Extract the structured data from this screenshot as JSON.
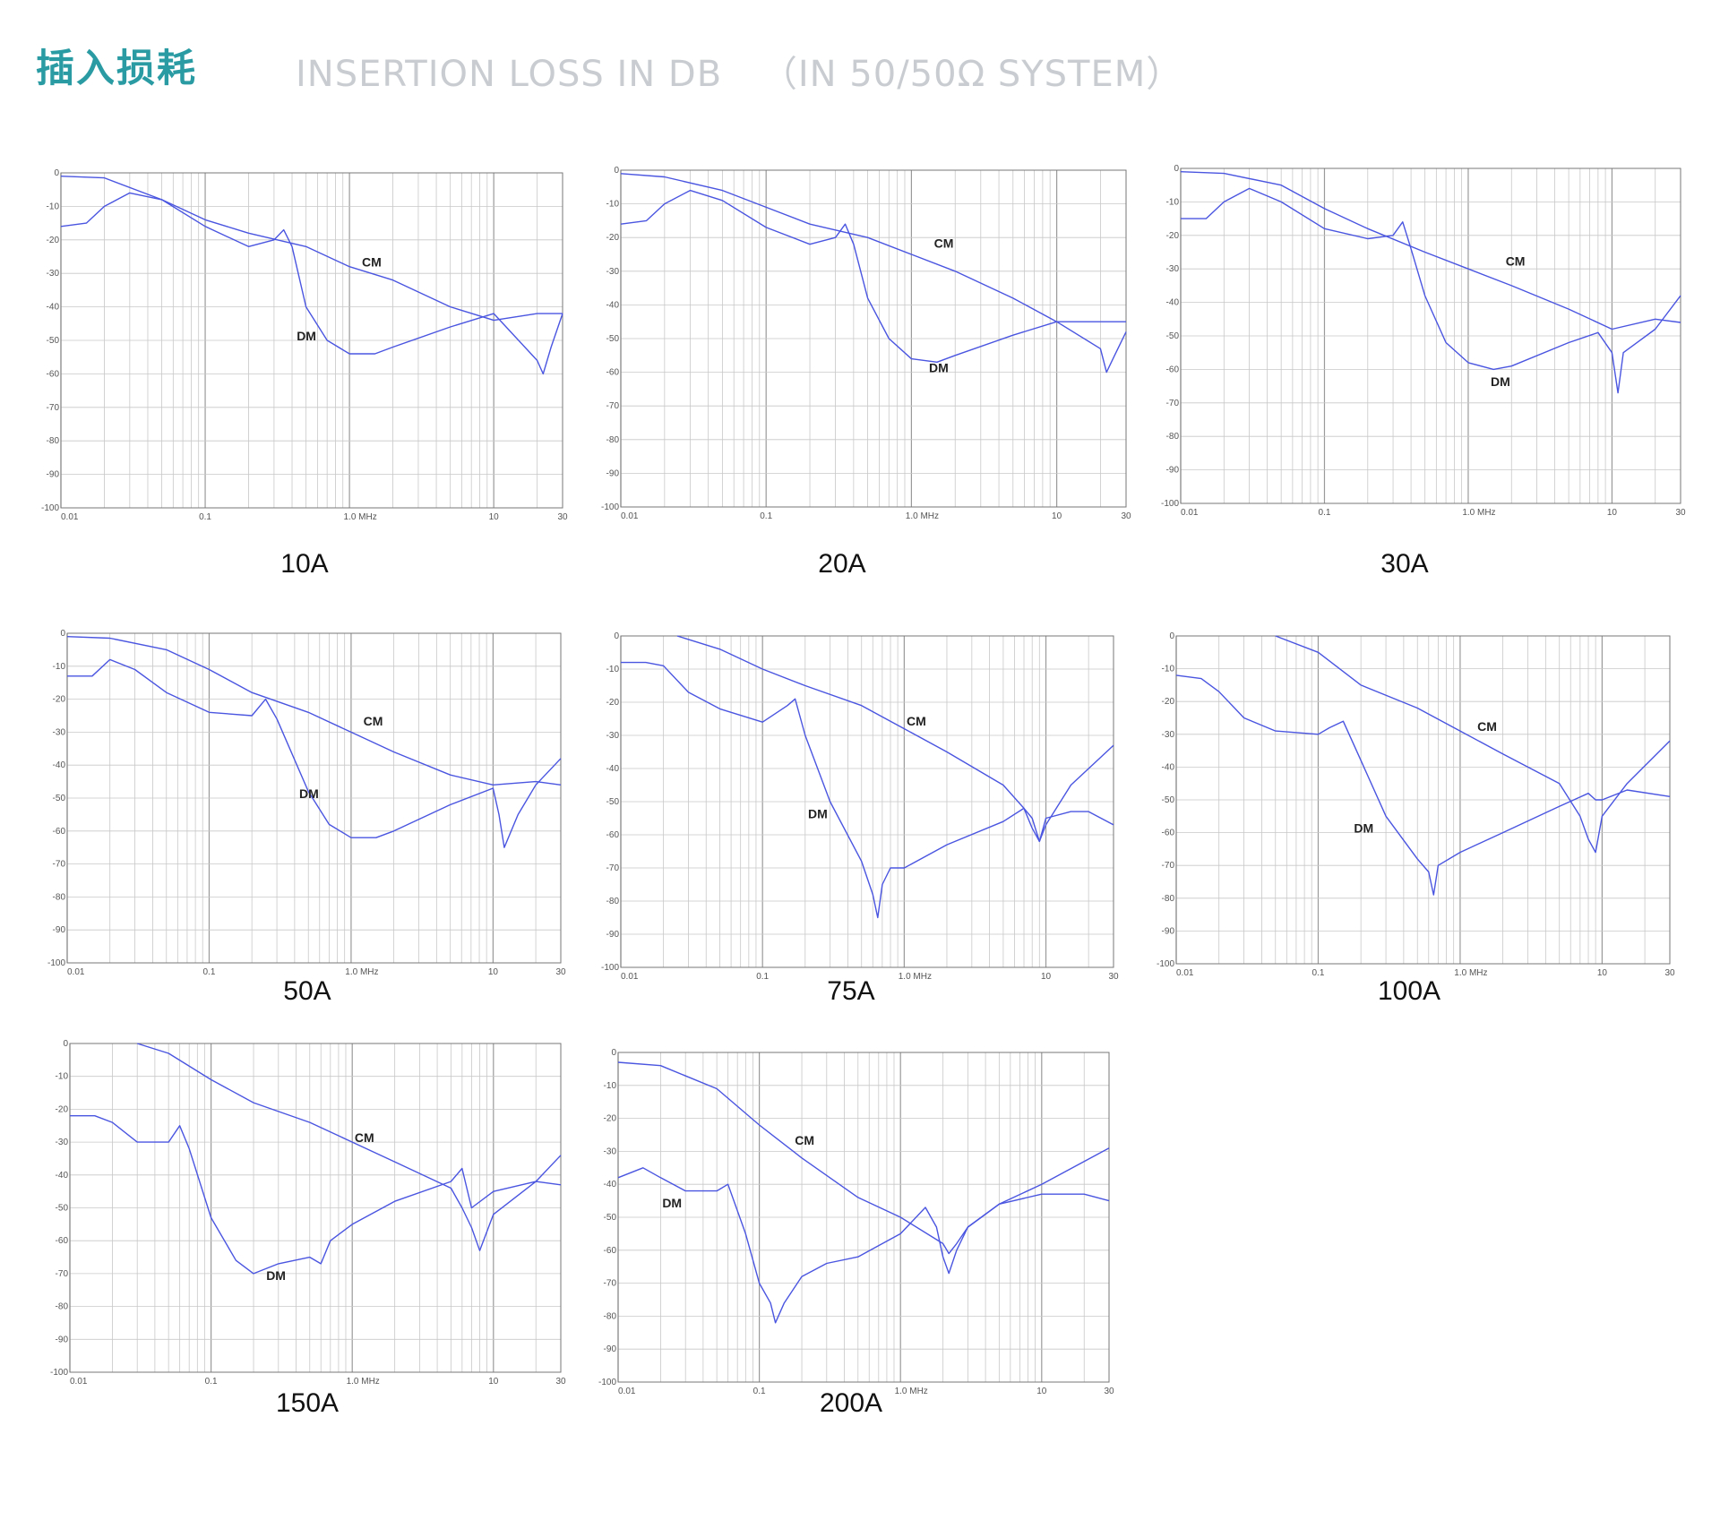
{
  "header": {
    "title_zh": "插入损耗",
    "title_en": "INSERTION LOSS IN DB",
    "system": "（IN 50/50Ω SYSTEM）"
  },
  "colors": {
    "accent": "#2a9ba3",
    "curve": "#4a55e0",
    "grid": "#c8c8c8"
  },
  "chart_data": [
    {
      "type": "line",
      "title": "10A",
      "x_scale": "log",
      "xlim": [
        0.01,
        30
      ],
      "ylim": [
        -100,
        0
      ],
      "x_ticks": [
        "0.01",
        "0.1",
        "1.0  MHz",
        "10",
        "30"
      ],
      "y_ticks": [
        "0",
        "-10",
        "-20",
        "-30",
        "-40",
        "-50",
        "-60",
        "-70",
        "-80",
        "-90",
        "-100"
      ],
      "series": [
        {
          "name": "CM",
          "x": [
            0.01,
            0.02,
            0.05,
            0.1,
            0.2,
            0.5,
            1.0,
            2,
            5,
            10,
            20,
            30
          ],
          "y": [
            -1,
            -1.5,
            -8,
            -14,
            -18,
            -22,
            -28,
            -32,
            -40,
            -44,
            -42,
            -42
          ]
        },
        {
          "name": "DM",
          "x": [
            0.01,
            0.015,
            0.02,
            0.03,
            0.05,
            0.1,
            0.2,
            0.3,
            0.35,
            0.4,
            0.5,
            0.7,
            1.0,
            1.5,
            2,
            5,
            10,
            20,
            22,
            25,
            30
          ],
          "y": [
            -16,
            -15,
            -10,
            -6,
            -8,
            -16,
            -22,
            -20,
            -17,
            -22,
            -40,
            -50,
            -54,
            -54,
            -52,
            -46,
            -42,
            -56,
            -60,
            -52,
            -42
          ]
        }
      ]
    },
    {
      "type": "line",
      "title": "20A",
      "x_scale": "log",
      "xlim": [
        0.01,
        30
      ],
      "ylim": [
        -100,
        0
      ],
      "x_ticks": [
        "0.01",
        "0.1",
        "1.0  MHz",
        "10",
        "30"
      ],
      "y_ticks": [
        "0",
        "-10",
        "-20",
        "-30",
        "-40",
        "-50",
        "-60",
        "-70",
        "-80",
        "-90",
        "-100"
      ],
      "series": [
        {
          "name": "CM",
          "x": [
            0.01,
            0.02,
            0.05,
            0.1,
            0.2,
            0.5,
            1.0,
            2,
            5,
            10,
            20,
            30
          ],
          "y": [
            -1,
            -2,
            -6,
            -11,
            -16,
            -20,
            -25,
            -30,
            -38,
            -45,
            -45,
            -45
          ]
        },
        {
          "name": "DM",
          "x": [
            0.01,
            0.015,
            0.02,
            0.03,
            0.05,
            0.1,
            0.2,
            0.3,
            0.35,
            0.4,
            0.5,
            0.7,
            1.0,
            1.5,
            2,
            5,
            10,
            20,
            22,
            25,
            30
          ],
          "y": [
            -16,
            -15,
            -10,
            -6,
            -9,
            -17,
            -22,
            -20,
            -16,
            -22,
            -38,
            -50,
            -56,
            -57,
            -55,
            -49,
            -45,
            -53,
            -60,
            -55,
            -48
          ]
        }
      ]
    },
    {
      "type": "line",
      "title": "30A",
      "x_scale": "log",
      "xlim": [
        0.01,
        30
      ],
      "ylim": [
        -100,
        0
      ],
      "x_ticks": [
        "0.01",
        "0.1",
        "1.0  MHz",
        "10",
        "30"
      ],
      "y_ticks": [
        "0",
        "-10",
        "-20",
        "-30",
        "-40",
        "-50",
        "-60",
        "-70",
        "-80",
        "-90",
        "-100"
      ],
      "series": [
        {
          "name": "CM",
          "x": [
            0.01,
            0.02,
            0.05,
            0.1,
            0.2,
            0.5,
            1.0,
            2,
            5,
            10,
            20,
            30
          ],
          "y": [
            -1,
            -1.5,
            -5,
            -12,
            -18,
            -25,
            -30,
            -35,
            -42,
            -48,
            -45,
            -46
          ]
        },
        {
          "name": "DM",
          "x": [
            0.01,
            0.015,
            0.02,
            0.03,
            0.05,
            0.1,
            0.2,
            0.3,
            0.35,
            0.4,
            0.5,
            0.7,
            1.0,
            1.5,
            2,
            5,
            8,
            10,
            11,
            12,
            20,
            30
          ],
          "y": [
            -15,
            -15,
            -10,
            -6,
            -10,
            -18,
            -21,
            -20,
            -16,
            -24,
            -38,
            -52,
            -58,
            -60,
            -59,
            -52,
            -49,
            -55,
            -67,
            -55,
            -48,
            -38
          ]
        }
      ]
    },
    {
      "type": "line",
      "title": "50A",
      "x_scale": "log",
      "xlim": [
        0.01,
        30
      ],
      "ylim": [
        -100,
        0
      ],
      "x_ticks": [
        "0.01",
        "0.1",
        "1.0  MHz",
        "10",
        "30"
      ],
      "y_ticks": [
        "0",
        "-10",
        "-20",
        "-30",
        "-40",
        "-50",
        "-60",
        "-70",
        "-80",
        "-90",
        "-100"
      ],
      "series": [
        {
          "name": "CM",
          "x": [
            0.01,
            0.02,
            0.05,
            0.1,
            0.2,
            0.5,
            1.0,
            2,
            5,
            10,
            20,
            30
          ],
          "y": [
            -1,
            -1.5,
            -5,
            -11,
            -18,
            -24,
            -30,
            -36,
            -43,
            -46,
            -45,
            -46
          ]
        },
        {
          "name": "DM",
          "x": [
            0.01,
            0.015,
            0.02,
            0.03,
            0.05,
            0.1,
            0.2,
            0.25,
            0.3,
            0.5,
            0.7,
            1.0,
            1.5,
            2,
            5,
            10,
            11,
            12,
            15,
            20,
            30
          ],
          "y": [
            -13,
            -13,
            -8,
            -11,
            -18,
            -24,
            -25,
            -20,
            -26,
            -48,
            -58,
            -62,
            -62,
            -60,
            -52,
            -47,
            -55,
            -65,
            -55,
            -46,
            -38
          ]
        }
      ]
    },
    {
      "type": "line",
      "title": "75A",
      "x_scale": "log",
      "xlim": [
        0.01,
        30
      ],
      "ylim": [
        -100,
        0
      ],
      "x_ticks": [
        "0.01",
        "0.1",
        "1.0  MHz",
        "10",
        "30"
      ],
      "y_ticks": [
        "0",
        "-10",
        "-20",
        "-30",
        "-40",
        "-50",
        "-60",
        "-70",
        "-80",
        "-90",
        "-100"
      ],
      "series": [
        {
          "name": "CM",
          "x": [
            0.025,
            0.05,
            0.1,
            0.2,
            0.5,
            1.0,
            2,
            5,
            7,
            8,
            9,
            10,
            15,
            30
          ],
          "y": [
            0,
            -4,
            -10,
            -15,
            -21,
            -28,
            -35,
            -45,
            -52,
            -58,
            -62,
            -57,
            -45,
            -33
          ]
        },
        {
          "name": "DM",
          "x": [
            0.01,
            0.015,
            0.02,
            0.03,
            0.05,
            0.1,
            0.15,
            0.17,
            0.2,
            0.3,
            0.5,
            0.6,
            0.65,
            0.7,
            0.8,
            1.0,
            2,
            5,
            7,
            8,
            9,
            10,
            15,
            20,
            30
          ],
          "y": [
            -8,
            -8,
            -9,
            -17,
            -22,
            -26,
            -21,
            -19,
            -30,
            -50,
            -68,
            -78,
            -85,
            -75,
            -70,
            -70,
            -63,
            -56,
            -52,
            -55,
            -62,
            -55,
            -53,
            -53,
            -57
          ]
        }
      ]
    },
    {
      "type": "line",
      "title": "100A",
      "x_scale": "log",
      "xlim": [
        0.01,
        30
      ],
      "ylim": [
        -100,
        0
      ],
      "x_ticks": [
        "0.01",
        "0.1",
        "1.0  MHz",
        "10",
        "30"
      ],
      "y_ticks": [
        "0",
        "-10",
        "-20",
        "-30",
        "-40",
        "-50",
        "-60",
        "-70",
        "-80",
        "-90",
        "-100"
      ],
      "series": [
        {
          "name": "CM",
          "x": [
            0.05,
            0.1,
            0.2,
            0.5,
            1.0,
            2,
            5,
            7,
            8,
            9,
            10,
            15,
            30
          ],
          "y": [
            0,
            -5,
            -15,
            -22,
            -29,
            -36,
            -45,
            -55,
            -62,
            -66,
            -55,
            -45,
            -32
          ]
        },
        {
          "name": "DM",
          "x": [
            0.01,
            0.015,
            0.02,
            0.03,
            0.05,
            0.1,
            0.12,
            0.15,
            0.2,
            0.3,
            0.5,
            0.6,
            0.65,
            0.7,
            1.0,
            2,
            5,
            8,
            9,
            10,
            15,
            30
          ],
          "y": [
            -12,
            -13,
            -17,
            -25,
            -29,
            -30,
            -28,
            -26,
            -38,
            -55,
            -68,
            -72,
            -79,
            -70,
            -66,
            -60,
            -52,
            -48,
            -50,
            -50,
            -47,
            -49
          ]
        }
      ]
    },
    {
      "type": "line",
      "title": "150A",
      "x_scale": "log",
      "xlim": [
        0.01,
        30
      ],
      "ylim": [
        -100,
        0
      ],
      "x_ticks": [
        "0.01",
        "0.1",
        "1.0  MHz",
        "10",
        "30"
      ],
      "y_ticks": [
        "0",
        "-10",
        "-20",
        "-30",
        "-40",
        "-50",
        "-60",
        "-70",
        "-80",
        "-90",
        "-100"
      ],
      "series": [
        {
          "name": "CM",
          "x": [
            0.03,
            0.05,
            0.1,
            0.2,
            0.5,
            1.0,
            2,
            5,
            6,
            7,
            8,
            10,
            20,
            30
          ],
          "y": [
            0,
            -3,
            -11,
            -18,
            -24,
            -30,
            -36,
            -44,
            -50,
            -56,
            -63,
            -52,
            -42,
            -34
          ]
        },
        {
          "name": "DM",
          "x": [
            0.01,
            0.015,
            0.02,
            0.03,
            0.05,
            0.06,
            0.07,
            0.1,
            0.15,
            0.2,
            0.3,
            0.5,
            0.6,
            0.7,
            1.0,
            2,
            5,
            6,
            7,
            10,
            20,
            30
          ],
          "y": [
            -22,
            -22,
            -24,
            -30,
            -30,
            -25,
            -32,
            -53,
            -66,
            -70,
            -67,
            -65,
            -67,
            -60,
            -55,
            -48,
            -42,
            -38,
            -50,
            -45,
            -42,
            -43
          ]
        }
      ]
    },
    {
      "type": "line",
      "title": "200A",
      "x_scale": "log",
      "xlim": [
        0.01,
        30
      ],
      "ylim": [
        -100,
        0
      ],
      "x_ticks": [
        "0.01",
        "0.1",
        "1.0  MHz",
        "10",
        "30"
      ],
      "y_ticks": [
        "0",
        "-10",
        "-20",
        "-30",
        "-40",
        "-50",
        "-60",
        "-70",
        "-80",
        "-90",
        "-100"
      ],
      "series": [
        {
          "name": "CM",
          "x": [
            0.01,
            0.02,
            0.05,
            0.1,
            0.2,
            0.5,
            1.0,
            2,
            2.2,
            2.5,
            3,
            5,
            10,
            30
          ],
          "y": [
            -3,
            -4,
            -11,
            -22,
            -32,
            -44,
            -50,
            -58,
            -61,
            -58,
            -53,
            -46,
            -40,
            -29
          ]
        },
        {
          "name": "DM",
          "x": [
            0.01,
            0.015,
            0.02,
            0.03,
            0.05,
            0.06,
            0.08,
            0.1,
            0.12,
            0.13,
            0.15,
            0.2,
            0.3,
            0.5,
            1.0,
            1.5,
            1.8,
            2,
            2.2,
            2.5,
            3,
            5,
            10,
            20,
            30
          ],
          "y": [
            -38,
            -35,
            -38,
            -42,
            -42,
            -40,
            -55,
            -70,
            -76,
            -82,
            -76,
            -68,
            -64,
            -62,
            -55,
            -47,
            -53,
            -62,
            -67,
            -60,
            -53,
            -46,
            -43,
            -43,
            -45
          ]
        }
      ]
    }
  ],
  "labels": {
    "cm": "CM",
    "dm": "DM"
  }
}
